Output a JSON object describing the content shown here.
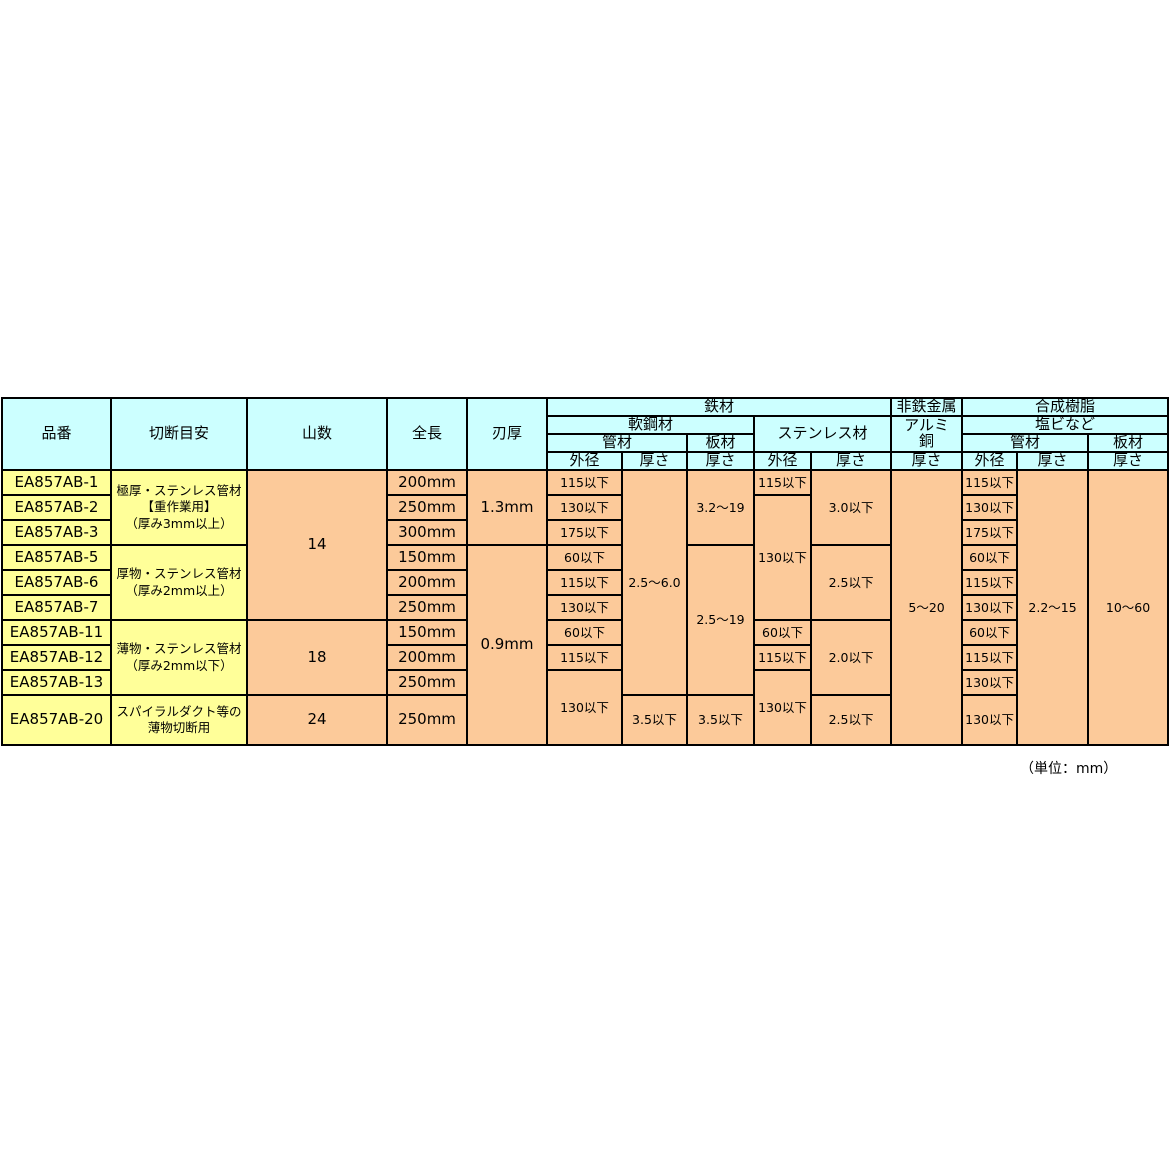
{
  "header": {
    "part_no": "品番",
    "cut_guide": "切断目安",
    "teeth": "山数",
    "length": "全長",
    "blade_thickness": "刃厚",
    "ferrous": "鉄材",
    "non_ferrous": "非鉄金属",
    "resin": "合成樹脂",
    "mild_steel": "軟鋼材",
    "stainless": "ステンレス材",
    "aluminum_copper": "アルミ\n銅",
    "pvc": "塩ビなど",
    "pipe": "管材",
    "plate": "板材",
    "outer_diameter": "外径",
    "thickness": "厚さ"
  },
  "body": {
    "part_no": [
      "EA857AB-1",
      "EA857AB-2",
      "EA857AB-3",
      "EA857AB-5",
      "EA857AB-6",
      "EA857AB-7",
      "EA857AB-11",
      "EA857AB-12",
      "EA857AB-13",
      "EA857AB-20"
    ],
    "cut_guide": [
      "極厚・ステンレス管材\n【重作業用】\n（厚み3mm以上）",
      "厚物・ステンレス管材\n（厚み2mm以上）",
      "薄物・ステンレス管材\n（厚み2mm以下）",
      "スパイラルダクト等の\n薄物切断用"
    ],
    "teeth": [
      "14",
      "18",
      "24"
    ],
    "length": [
      "200mm",
      "250mm",
      "300mm",
      "150mm",
      "200mm",
      "250mm",
      "150mm",
      "200mm",
      "250mm",
      "250mm"
    ],
    "blade_thickness": [
      "1.3mm",
      "0.9mm"
    ],
    "mild_pipe_od": [
      "115以下",
      "130以下",
      "175以下",
      "60以下",
      "115以下",
      "130以下",
      "60以下",
      "115以下",
      "130以下"
    ],
    "mild_pipe_thickness": [
      "2.5〜6.0",
      "3.5以下"
    ],
    "mild_plate_thickness": [
      "3.2〜19",
      "2.5〜19",
      "3.5以下"
    ],
    "stainless_od": [
      "115以下",
      "130以下",
      "60以下",
      "115以下",
      "130以下"
    ],
    "stainless_thickness": [
      "3.0以下",
      "2.5以下",
      "2.0以下",
      "2.5以下"
    ],
    "aluminum_thickness": [
      "5〜20"
    ],
    "pvc_pipe_od": [
      "115以下",
      "130以下",
      "175以下",
      "60以下",
      "115以下",
      "130以下",
      "60以下",
      "115以下",
      "130以下",
      "130以下"
    ],
    "pvc_pipe_thickness": [
      "2.2〜15"
    ],
    "pvc_plate_thickness": [
      "10〜60"
    ]
  },
  "unit_note": "（単位：mm）"
}
